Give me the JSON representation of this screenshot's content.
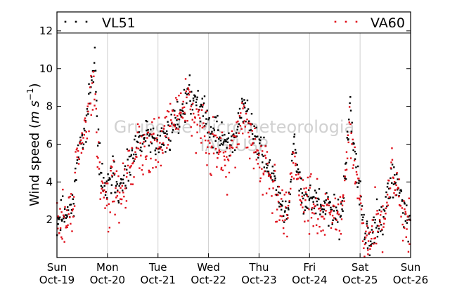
{
  "chart_data": {
    "type": "scatter",
    "title": "",
    "xlabel": "",
    "ylabel": "Wind speed (m s⁻¹)",
    "ylabel_parts": {
      "main": "Wind speed (",
      "unit1": "m",
      "unit2": "s",
      "exp": "−1",
      "close": ")"
    },
    "ylim": [
      0,
      13
    ],
    "xlim": [
      0,
      7
    ],
    "y_ticks": [
      2,
      4,
      6,
      8,
      10,
      12
    ],
    "x_ticks": [
      {
        "value": 0,
        "day": "Sun",
        "date": "Oct-19"
      },
      {
        "value": 1,
        "day": "Mon",
        "date": "Oct-20"
      },
      {
        "value": 2,
        "day": "Tue",
        "date": "Oct-21"
      },
      {
        "value": 3,
        "day": "Wed",
        "date": "Oct-22"
      },
      {
        "value": 4,
        "day": "Thu",
        "date": "Oct-23"
      },
      {
        "value": 5,
        "day": "Fri",
        "date": "Oct-24"
      },
      {
        "value": 6,
        "day": "Sat",
        "date": "Oct-25"
      },
      {
        "value": 7,
        "day": "Sun",
        "date": "Oct-26"
      }
    ],
    "grid": "vertical",
    "legend_placement": "top",
    "watermark": {
      "line1": "Grupo de Micrometeorologia",
      "line2": "IAG/USP"
    },
    "series": [
      {
        "name": "VL51",
        "color": "#000000",
        "trend": [
          [
            0.0,
            1.9
          ],
          [
            0.15,
            2.4
          ],
          [
            0.3,
            2.6
          ],
          [
            0.4,
            5.0
          ],
          [
            0.5,
            6.5
          ],
          [
            0.6,
            7.5
          ],
          [
            0.7,
            9.5
          ],
          [
            0.75,
            10.5
          ],
          [
            0.8,
            6.5
          ],
          [
            0.9,
            4.0
          ],
          [
            1.0,
            3.5
          ],
          [
            1.1,
            4.5
          ],
          [
            1.25,
            3.5
          ],
          [
            1.4,
            4.5
          ],
          [
            1.6,
            6.0
          ],
          [
            1.8,
            6.5
          ],
          [
            2.0,
            6.0
          ],
          [
            2.2,
            6.5
          ],
          [
            2.4,
            7.5
          ],
          [
            2.6,
            8.5
          ],
          [
            2.8,
            8.5
          ],
          [
            3.0,
            7.0
          ],
          [
            3.2,
            6.5
          ],
          [
            3.4,
            6.0
          ],
          [
            3.55,
            6.5
          ],
          [
            3.7,
            8.0
          ],
          [
            3.85,
            7.0
          ],
          [
            4.0,
            6.0
          ],
          [
            4.15,
            5.0
          ],
          [
            4.3,
            4.0
          ],
          [
            4.45,
            2.8
          ],
          [
            4.55,
            2.0
          ],
          [
            4.7,
            6.0
          ],
          [
            4.8,
            4.0
          ],
          [
            4.9,
            3.2
          ],
          [
            5.1,
            3.0
          ],
          [
            5.3,
            2.5
          ],
          [
            5.5,
            2.5
          ],
          [
            5.6,
            2.0
          ],
          [
            5.7,
            4.0
          ],
          [
            5.8,
            8.0
          ],
          [
            5.9,
            5.5
          ],
          [
            6.0,
            3.0
          ],
          [
            6.1,
            1.0
          ],
          [
            6.2,
            0.8
          ],
          [
            6.3,
            2.0
          ],
          [
            6.45,
            1.8
          ],
          [
            6.55,
            3.5
          ],
          [
            6.65,
            4.0
          ],
          [
            6.75,
            4.0
          ],
          [
            6.85,
            2.5
          ],
          [
            7.0,
            1.8
          ]
        ],
        "spread": 0.7,
        "points_per_day": 90,
        "seed": 11
      },
      {
        "name": "VA60",
        "color": "#e0101b",
        "trend": [
          [
            0.0,
            1.7
          ],
          [
            0.15,
            2.0
          ],
          [
            0.3,
            2.5
          ],
          [
            0.4,
            4.8
          ],
          [
            0.5,
            6.2
          ],
          [
            0.6,
            7.0
          ],
          [
            0.7,
            9.0
          ],
          [
            0.75,
            8.5
          ],
          [
            0.8,
            6.0
          ],
          [
            0.9,
            3.8
          ],
          [
            1.0,
            3.0
          ],
          [
            1.1,
            4.0
          ],
          [
            1.25,
            3.2
          ],
          [
            1.4,
            4.2
          ],
          [
            1.6,
            5.8
          ],
          [
            1.8,
            6.3
          ],
          [
            2.0,
            6.0
          ],
          [
            2.2,
            6.8
          ],
          [
            2.4,
            7.8
          ],
          [
            2.6,
            8.0
          ],
          [
            2.8,
            7.5
          ],
          [
            3.0,
            6.0
          ],
          [
            3.2,
            5.5
          ],
          [
            3.4,
            5.0
          ],
          [
            3.55,
            6.0
          ],
          [
            3.7,
            7.5
          ],
          [
            3.85,
            6.5
          ],
          [
            4.0,
            5.0
          ],
          [
            4.15,
            4.5
          ],
          [
            4.3,
            3.8
          ],
          [
            4.45,
            2.5
          ],
          [
            4.55,
            1.8
          ],
          [
            4.7,
            5.5
          ],
          [
            4.8,
            3.6
          ],
          [
            4.9,
            3.0
          ],
          [
            5.1,
            2.8
          ],
          [
            5.3,
            2.2
          ],
          [
            5.5,
            2.0
          ],
          [
            5.6,
            1.8
          ],
          [
            5.7,
            3.8
          ],
          [
            5.8,
            7.0
          ],
          [
            5.9,
            5.0
          ],
          [
            6.0,
            2.8
          ],
          [
            6.1,
            0.8
          ],
          [
            6.2,
            0.6
          ],
          [
            6.3,
            1.8
          ],
          [
            6.45,
            1.6
          ],
          [
            6.55,
            3.2
          ],
          [
            6.65,
            4.5
          ],
          [
            6.75,
            3.8
          ],
          [
            6.85,
            2.2
          ],
          [
            7.0,
            1.5
          ]
        ],
        "spread": 1.1,
        "points_per_day": 90,
        "seed": 29
      }
    ]
  }
}
